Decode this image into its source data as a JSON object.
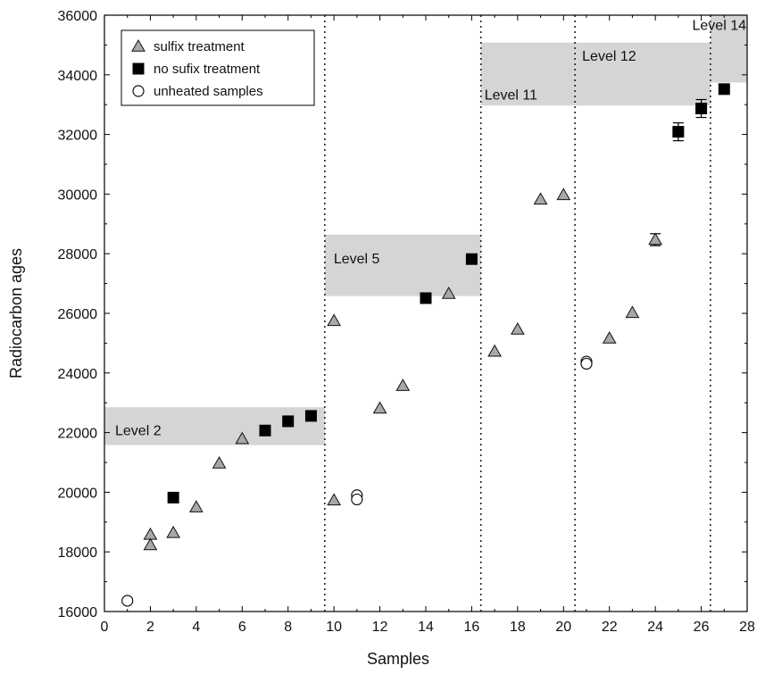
{
  "chart_data": {
    "type": "scatter",
    "xlabel": "Samples",
    "ylabel": "Radiocarbon ages",
    "xlim": [
      0,
      28
    ],
    "ylim": [
      16000,
      36000
    ],
    "xticks": [
      0,
      2,
      4,
      6,
      8,
      10,
      12,
      14,
      16,
      18,
      20,
      22,
      24,
      26,
      28
    ],
    "yticks": [
      16000,
      18000,
      20000,
      22000,
      24000,
      26000,
      28000,
      30000,
      32000,
      34000,
      36000
    ],
    "grid": false,
    "legend_position": "top-left",
    "series": [
      {
        "name": "sulfix treatment",
        "marker": "triangle",
        "color": "#a8a8a8",
        "points": [
          {
            "x": 2,
            "y": 18580
          },
          {
            "x": 2,
            "y": 18230
          },
          {
            "x": 3,
            "y": 18640
          },
          {
            "x": 4,
            "y": 19500
          },
          {
            "x": 5,
            "y": 20970
          },
          {
            "x": 6,
            "y": 21790
          },
          {
            "x": 10,
            "y": 25750
          },
          {
            "x": 10,
            "y": 19730
          },
          {
            "x": 12,
            "y": 22810
          },
          {
            "x": 13,
            "y": 23570
          },
          {
            "x": 15,
            "y": 26660
          },
          {
            "x": 17,
            "y": 24720
          },
          {
            "x": 18,
            "y": 25460
          },
          {
            "x": 19,
            "y": 29820
          },
          {
            "x": 20,
            "y": 29970
          },
          {
            "x": 22,
            "y": 25160
          },
          {
            "x": 23,
            "y": 26020
          },
          {
            "x": 24,
            "y": 28470,
            "err": 200
          }
        ]
      },
      {
        "name": "no sufix treatment",
        "marker": "square",
        "color": "#000000",
        "points": [
          {
            "x": 3,
            "y": 19820
          },
          {
            "x": 7,
            "y": 22070
          },
          {
            "x": 8,
            "y": 22380
          },
          {
            "x": 9,
            "y": 22560
          },
          {
            "x": 14,
            "y": 26510
          },
          {
            "x": 16,
            "y": 27820
          },
          {
            "x": 25,
            "y": 32090,
            "err": 300
          },
          {
            "x": 26,
            "y": 32870,
            "err": 300
          },
          {
            "x": 27,
            "y": 33520,
            "err": 150
          }
        ]
      },
      {
        "name": "unheated samples",
        "marker": "circle",
        "color": "#ffffff",
        "points": [
          {
            "x": 1,
            "y": 16360
          },
          {
            "x": 11,
            "y": 19900
          },
          {
            "x": 11,
            "y": 19760
          },
          {
            "x": 21,
            "y": 24380
          },
          {
            "x": 21,
            "y": 24310
          }
        ]
      }
    ],
    "levels": [
      {
        "label": "Level 2",
        "x0": 0,
        "x1": 9.6,
        "y0": 21580,
        "y1": 22850
      },
      {
        "label": "Level 5",
        "x0": 9.6,
        "x1": 16.4,
        "y0": 26580,
        "y1": 28640
      },
      {
        "label": "Level 11",
        "x0": 16.4,
        "x1": 20.5,
        "y0": 32970,
        "y1": 35080
      },
      {
        "label": "Level 12",
        "x0": 20.5,
        "x1": 26.4,
        "y0": 32970,
        "y1": 35080
      },
      {
        "label": "Level 14",
        "x0": 26.4,
        "x1": 28,
        "y0": 33740,
        "y1": 36000
      }
    ],
    "dividers_x": [
      9.6,
      16.4,
      20.5,
      26.4
    ]
  }
}
